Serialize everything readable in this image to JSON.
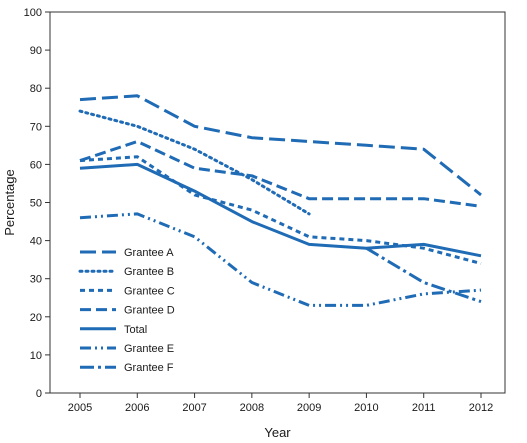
{
  "chart_data": {
    "type": "line",
    "title": "",
    "xlabel": "Year",
    "ylabel": "Percentage",
    "x": [
      "2005",
      "2006",
      "2007",
      "2008",
      "2009",
      "2010",
      "2011",
      "2012"
    ],
    "ylim": [
      0,
      100
    ],
    "yticks": [
      0,
      10,
      20,
      30,
      40,
      50,
      60,
      70,
      80,
      90,
      100
    ],
    "grid": false,
    "legend_position": "bottom-left",
    "line_color": "#1f6bb5",
    "series": [
      {
        "name": "Grantee A",
        "dash": "long-dash",
        "values": [
          77,
          78,
          70,
          67,
          66,
          65,
          64,
          52
        ]
      },
      {
        "name": "Grantee B",
        "dash": "dotted",
        "values": [
          74,
          70,
          64,
          56,
          47,
          null,
          null,
          null
        ]
      },
      {
        "name": "Grantee C",
        "dash": "short-dash",
        "values": [
          61,
          62,
          52,
          48,
          41,
          40,
          38,
          34
        ]
      },
      {
        "name": "Grantee D",
        "dash": "dash",
        "values": [
          61,
          66,
          59,
          57,
          51,
          51,
          51,
          49
        ]
      },
      {
        "name": "Total",
        "dash": "solid",
        "values": [
          59,
          60,
          53,
          45,
          39,
          38,
          39,
          36
        ]
      },
      {
        "name": "Grantee E",
        "dash": "dash-dot-dot",
        "values": [
          46,
          47,
          41,
          29,
          23,
          23,
          26,
          27
        ]
      },
      {
        "name": "Grantee F",
        "dash": "dash-dot",
        "values": [
          null,
          null,
          null,
          null,
          null,
          38,
          29,
          24
        ]
      }
    ]
  }
}
